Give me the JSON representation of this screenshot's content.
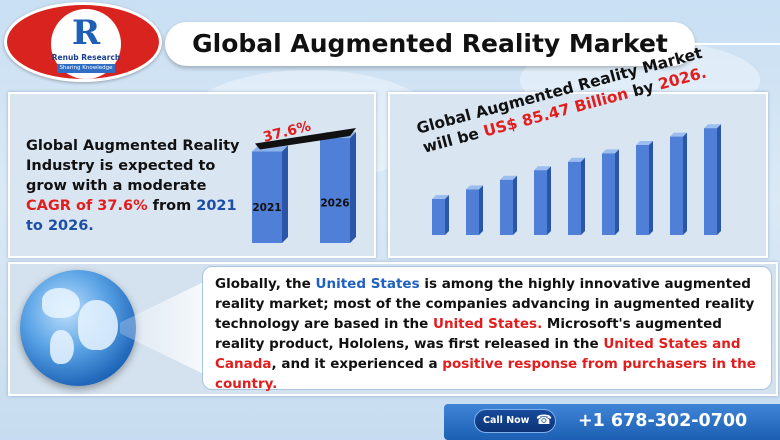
{
  "header": {
    "logo_mark": "R",
    "logo_name": "Renub Research",
    "logo_tagline": "Sharing Knowledge",
    "title": "Global Augmented Reality Market"
  },
  "growth_panel": {
    "text_1": "Global Augmented Reality Industry is expected to grow with a moderate ",
    "cagr_text": "CAGR of 37.6%",
    "text_2": " from ",
    "years_text": "2021 to 2026."
  },
  "market_panel": {
    "title_1": "Global Augmented Reality Market will be ",
    "value_text": "US$ 85.47 Billion",
    "title_2": " by ",
    "year_text": "2026."
  },
  "description": {
    "parts": [
      {
        "text": "Globally, the ",
        "style": "plain"
      },
      {
        "text": "United States",
        "style": "blue"
      },
      {
        "text": " is among the highly innovative augmented reality market; most of the companies advancing in augmented reality technology are based in the ",
        "style": "plain"
      },
      {
        "text": "United States.",
        "style": "red"
      },
      {
        "text": " Microsoft's augmented reality product, Hololens, was first released in the ",
        "style": "plain"
      },
      {
        "text": "United States and Canada",
        "style": "red"
      },
      {
        "text": ", and it experienced a ",
        "style": "plain"
      },
      {
        "text": "positive response from purchasers in the country.",
        "style": "red"
      }
    ]
  },
  "contact": {
    "call_label": "Call Now",
    "phone_icon": "phone-icon",
    "number": "+1 678-302-0700"
  },
  "colors": {
    "bar_fill": "#4f7fd6",
    "bar_dark": "#2b55a8",
    "red": "#e21d1d",
    "blue": "#1c4ea8",
    "logo_red": "#d9231f",
    "call_bar": "#2f74c9"
  },
  "chart_data": [
    {
      "type": "bar",
      "categories": [
        "2021",
        "2026"
      ],
      "values": [
        61,
        70
      ],
      "annotation": "37.6%",
      "title": "",
      "xlabel": "",
      "ylabel": "",
      "ylim": [
        0,
        100
      ]
    },
    {
      "type": "bar",
      "categories": [
        "",
        "",
        "",
        "",
        "",
        "",
        "",
        "",
        ""
      ],
      "values": [
        30,
        38,
        46,
        54,
        61,
        68,
        75,
        82,
        89
      ],
      "title": "Global Augmented Reality Market will be US$ 85.47 Billion by 2026.",
      "xlabel": "",
      "ylabel": "",
      "ylim": [
        0,
        100
      ]
    }
  ]
}
